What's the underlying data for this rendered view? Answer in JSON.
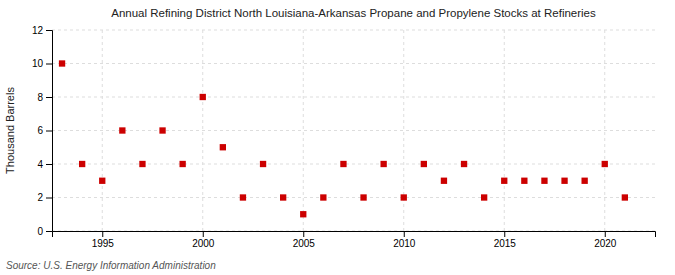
{
  "chart_data": {
    "type": "scatter",
    "title": "Annual Refining District North Louisiana-Arkansas Propane and Propylene Stocks at Refineries",
    "ylabel": "Thousand Barrels",
    "annotations": [
      "Source: U.S. Energy Information Administration"
    ],
    "x": [
      1993,
      1994,
      1995,
      1996,
      1997,
      1998,
      1999,
      2000,
      2001,
      2002,
      2003,
      2004,
      2005,
      2006,
      2007,
      2008,
      2009,
      2010,
      2011,
      2012,
      2013,
      2014,
      2015,
      2016,
      2017,
      2018,
      2019,
      2020,
      2021
    ],
    "values": [
      10,
      4,
      3,
      6,
      4,
      6,
      4,
      8,
      5,
      2,
      4,
      2,
      1,
      2,
      4,
      2,
      4,
      2,
      4,
      3,
      4,
      2,
      3,
      3,
      3,
      3,
      3,
      4,
      2
    ],
    "color": "#cc0000",
    "marker": "square",
    "xlim": [
      1992.5,
      2022.5
    ],
    "xticks": [
      1995,
      2000,
      2005,
      2010,
      2015,
      2020
    ],
    "ylim": [
      0,
      12
    ],
    "yticks": [
      0,
      2,
      4,
      6,
      8,
      10,
      12
    ],
    "grid": true
  }
}
